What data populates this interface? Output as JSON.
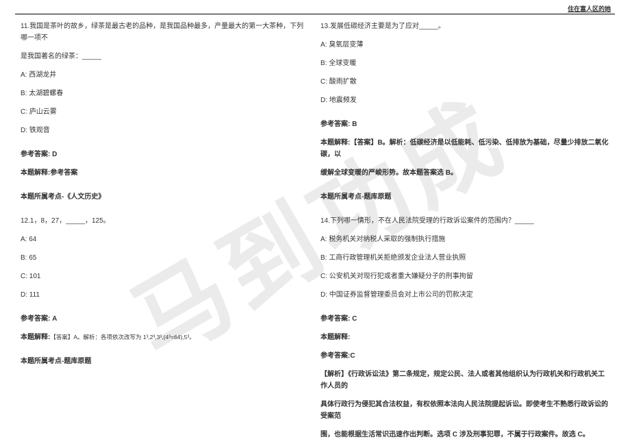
{
  "header": {
    "right_text": "住在富人区的她"
  },
  "watermark": {
    "text": "马到功成"
  },
  "left_column": {
    "q11": {
      "stem_line1": "11.我国是茶叶的故乡，绿茶是最古老的品种，是我国品种最多，产量最大的第一大茶种，下列哪一项不",
      "stem_line2": "是我国著名的绿茶：_____",
      "opt_a": "A: 西湖龙井",
      "opt_b": "B: 太湖碧螺春",
      "opt_c": "C: 庐山云雾",
      "opt_d": "D: 铁观音",
      "answer_label": "参考答案: D",
      "explain_label": "本题解释:参考答案",
      "topic_label": "本题所属考点-《人文历史》"
    },
    "q12": {
      "stem": "12.1，8，27，_____，125。",
      "opt_a": "A: 64",
      "opt_b": "B: 65",
      "opt_c": "C: 101",
      "opt_d": "D: 111",
      "answer_label": "参考答案: A",
      "explain_label": "本题解释:",
      "explain_text": "【答案】A。解析：各项依次改写为 1³,2³,3³,(4³=64),5³。",
      "topic_label": "本题所属考点-题库原题"
    }
  },
  "right_column": {
    "q13": {
      "stem": "13.发展低碳经济主要是为了应对_____。",
      "opt_a": "A: 臭氧层变薄",
      "opt_b": "B: 全球变暖",
      "opt_c": "C: 酸雨扩散",
      "opt_d": "D: 地震频发",
      "answer_label": "参考答案: B",
      "explain_line1": "本题解释:【答案】B。解析：低碳经济是以低能耗、低污染、低排放为基础，尽量少排放二氧化碳，以",
      "explain_line2": "缓解全球变暖的严峻形势。故本题答案选 B。",
      "topic_label": "本题所属考点-题库原题"
    },
    "q14": {
      "stem": "14.下列哪一情形，不在人民法院受理的行政诉讼案件的范围内？_____",
      "opt_a": "A: 税务机关对纳税人采取的强制执行措施",
      "opt_b": "B: 工商行政管理机关拒绝颁发企业法人营业执照",
      "opt_c": "C: 公安机关对现行犯或者重大嫌疑分子的刑事拘留",
      "opt_d": "D: 中国证券监督管理委员会对上市公司的罚款决定",
      "answer_label": "参考答案: C",
      "explain_label": "本题解释:",
      "ref_answer": "参考答案:C",
      "explain_line1": "【解析】《行政诉讼法》第二条规定，规定公民、法人或者其他组织认为行政机关和行政机关工作人员的",
      "explain_line2": "具体行政行为侵犯其合法权益，有权依照本法向人民法院提起诉讼。即使考生不熟悉行政诉讼的受案范",
      "explain_line3": "围，也能根据生活常识迅速作出判断。选项 C 涉及刑事犯罪，不属于行政案件。故选 C。"
    }
  }
}
